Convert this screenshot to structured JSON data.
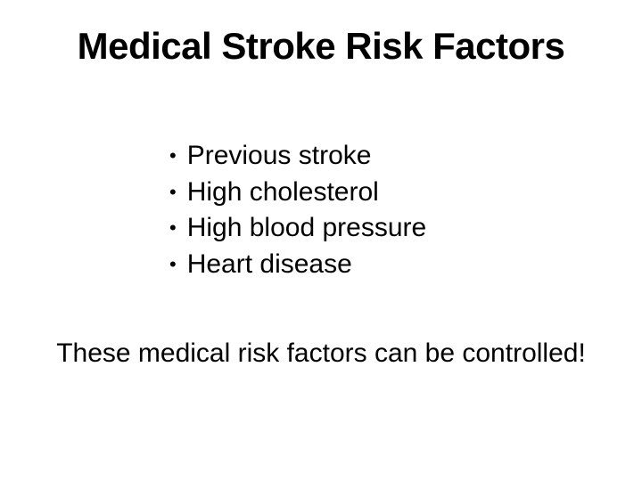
{
  "slide": {
    "title": "Medical Stroke Risk Factors",
    "background_color": "#ffffff",
    "text_color": "#000000",
    "title_fontsize": 42,
    "title_weight": "bold",
    "bullets": [
      "Previous stroke",
      "High cholesterol",
      "High blood pressure",
      "Heart disease"
    ],
    "bullet_fontsize": 30,
    "bullet_symbol": "•",
    "footer": "These medical risk factors can be controlled!",
    "footer_fontsize": 30
  }
}
